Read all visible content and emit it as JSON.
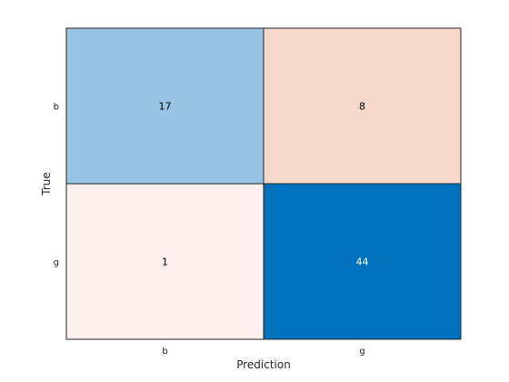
{
  "chart_data": {
    "type": "heatmap",
    "title": "",
    "xlabel": "Prediction",
    "ylabel": "True",
    "x_categories": [
      "b",
      "g"
    ],
    "y_categories": [
      "b",
      "g"
    ],
    "values": [
      [
        17,
        8
      ],
      [
        1,
        44
      ]
    ],
    "value_labels": [
      [
        "17",
        "8"
      ],
      [
        "1",
        "44"
      ]
    ],
    "colors": [
      [
        "#99c4e3",
        "#f6d9cb"
      ],
      [
        "#fcf1ee",
        "#0072bd"
      ]
    ],
    "label_colors": [
      [
        "#000000",
        "#000000"
      ],
      [
        "#000000",
        "#ffffff"
      ]
    ],
    "grid": true,
    "legend": "none"
  }
}
